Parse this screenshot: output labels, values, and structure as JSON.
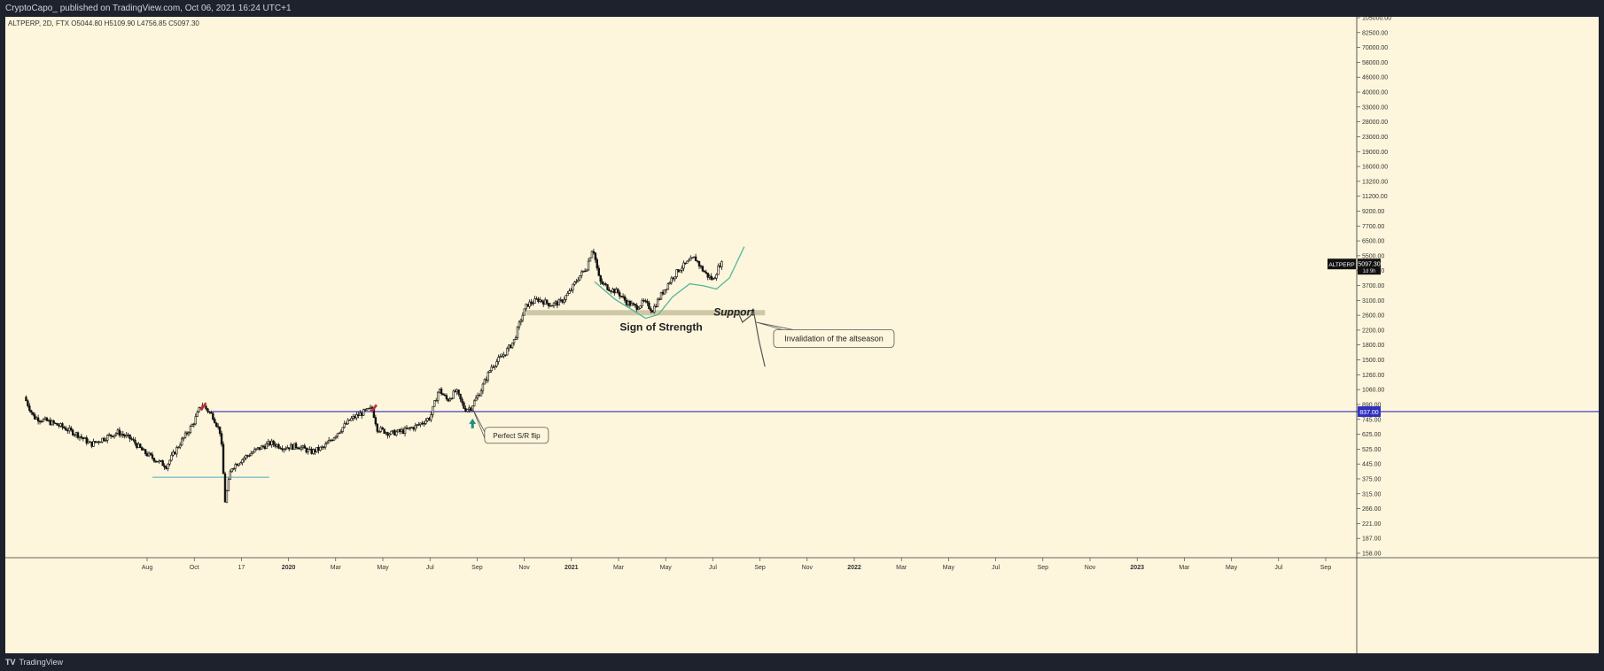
{
  "header": {
    "publisher": "CryptoCapo_ published on TradingView.com, Oct 06, 2021 16:24 UTC+1"
  },
  "footer": {
    "logo_glyph": "TV",
    "brand": "TradingView"
  },
  "chart_data": {
    "type": "candlestick",
    "symbol_info": "ALTPERP, 2D, FTX",
    "ohlc": {
      "open": "O5044.80",
      "high": "H5109.90",
      "low": "L4756.85",
      "close": "C5097.30"
    },
    "y_scale": "log",
    "ylim": [
      140,
      105000
    ],
    "y_ticks": [
      "105000.00",
      "82500.00",
      "70000.00",
      "58000.00",
      "46000.00",
      "40000.00",
      "33000.00",
      "28000.00",
      "23000.00",
      "19000.00",
      "16000.00",
      "13200.00",
      "11200.00",
      "9200.00",
      "7700.00",
      "6500.00",
      "5500.00",
      "4600.00",
      "3700.00",
      "3100.00",
      "2600.00",
      "2200.00",
      "1800.00",
      "1500.00",
      "1260.00",
      "1060.00",
      "890.00",
      "745.00",
      "625.00",
      "525.00",
      "445.00",
      "375.00",
      "315.00",
      "266.00",
      "221.00",
      "187.00",
      "158.00"
    ],
    "x_ticks": [
      "Aug",
      "Oct",
      "17",
      "2020",
      "Mar",
      "May",
      "Jul",
      "Sep",
      "Nov",
      "2021",
      "Mar",
      "May",
      "Jul",
      "Sep",
      "Nov",
      "2022",
      "Mar",
      "May",
      "Jul",
      "Sep",
      "Nov",
      "2023",
      "Mar",
      "May",
      "Jul",
      "Sep"
    ],
    "bold_x_ticks": [
      "2020",
      "2021",
      "2022",
      "2023"
    ],
    "x_range": [
      "2019-07-01",
      "2023-10-10"
    ],
    "price_path": [
      [
        "2019-07-25",
        1000
      ],
      [
        "2019-08-05",
        780
      ],
      [
        "2019-08-20",
        745
      ],
      [
        "2019-09-05",
        700
      ],
      [
        "2019-09-25",
        630
      ],
      [
        "2019-10-10",
        560
      ],
      [
        "2019-10-25",
        605
      ],
      [
        "2019-11-10",
        650
      ],
      [
        "2019-11-25",
        600
      ],
      [
        "2019-12-10",
        510
      ],
      [
        "2019-12-25",
        460
      ],
      [
        "2020-01-05",
        430
      ],
      [
        "2020-01-20",
        560
      ],
      [
        "2020-02-05",
        720
      ],
      [
        "2020-02-15",
        920
      ],
      [
        "2020-02-28",
        790
      ],
      [
        "2020-03-08",
        640
      ],
      [
        "2020-03-13",
        280
      ],
      [
        "2020-03-20",
        420
      ],
      [
        "2020-04-05",
        480
      ],
      [
        "2020-04-20",
        530
      ],
      [
        "2020-05-05",
        570
      ],
      [
        "2020-05-20",
        540
      ],
      [
        "2020-06-05",
        550
      ],
      [
        "2020-06-20",
        510
      ],
      [
        "2020-07-05",
        540
      ],
      [
        "2020-07-20",
        640
      ],
      [
        "2020-08-05",
        760
      ],
      [
        "2020-08-20",
        830
      ],
      [
        "2020-08-30",
        870
      ],
      [
        "2020-09-05",
        680
      ],
      [
        "2020-09-20",
        640
      ],
      [
        "2020-10-05",
        660
      ],
      [
        "2020-10-20",
        700
      ],
      [
        "2020-11-05",
        780
      ],
      [
        "2020-11-15",
        1100
      ],
      [
        "2020-11-25",
        960
      ],
      [
        "2020-12-05",
        1080
      ],
      [
        "2020-12-15",
        860
      ],
      [
        "2020-12-22",
        880
      ],
      [
        "2021-01-01",
        1050
      ],
      [
        "2021-01-15",
        1450
      ],
      [
        "2021-01-30",
        1700
      ],
      [
        "2021-02-10",
        2000
      ],
      [
        "2021-02-18",
        2600
      ],
      [
        "2021-02-25",
        3100
      ],
      [
        "2021-03-10",
        3300
      ],
      [
        "2021-03-25",
        3100
      ],
      [
        "2021-04-05",
        3200
      ],
      [
        "2021-04-15",
        3600
      ],
      [
        "2021-04-25",
        4300
      ],
      [
        "2021-05-05",
        4900
      ],
      [
        "2021-05-12",
        6300
      ],
      [
        "2021-05-20",
        4100
      ],
      [
        "2021-05-30",
        3800
      ],
      [
        "2021-06-10",
        3600
      ],
      [
        "2021-06-20",
        3200
      ],
      [
        "2021-07-01",
        3000
      ],
      [
        "2021-07-10",
        3200
      ],
      [
        "2021-07-20",
        2900
      ],
      [
        "2021-07-30",
        3500
      ],
      [
        "2021-08-10",
        4200
      ],
      [
        "2021-08-20",
        4800
      ],
      [
        "2021-08-30",
        5200
      ],
      [
        "2021-09-07",
        5500
      ],
      [
        "2021-09-15",
        4800
      ],
      [
        "2021-09-22",
        4400
      ],
      [
        "2021-09-28",
        4200
      ],
      [
        "2021-10-06",
        5097
      ]
    ],
    "horizontal_level": {
      "value": 837,
      "label": "837.00",
      "color": "#2f2fbf"
    },
    "support_zone": {
      "low": 2750,
      "high": 2900,
      "label": "Support",
      "color": "#cfc8a8"
    },
    "price_badge": {
      "symbol": "ALTPERP",
      "price": "5097.30",
      "countdown": "1d 9h"
    },
    "annotations": {
      "sign_of_strength": "Sign of Strength",
      "invalidation": "Invalidation of the altseason",
      "flip": "Perfect S/R flip"
    },
    "colors": {
      "background": "#fdf6dc",
      "candles": "#111111",
      "rounded_bottom": "#52b79b",
      "level": "#2f2fbf",
      "short_level": "#4fa8c4",
      "marker": "#c0303a",
      "arrow": "#1f8f7d"
    }
  }
}
